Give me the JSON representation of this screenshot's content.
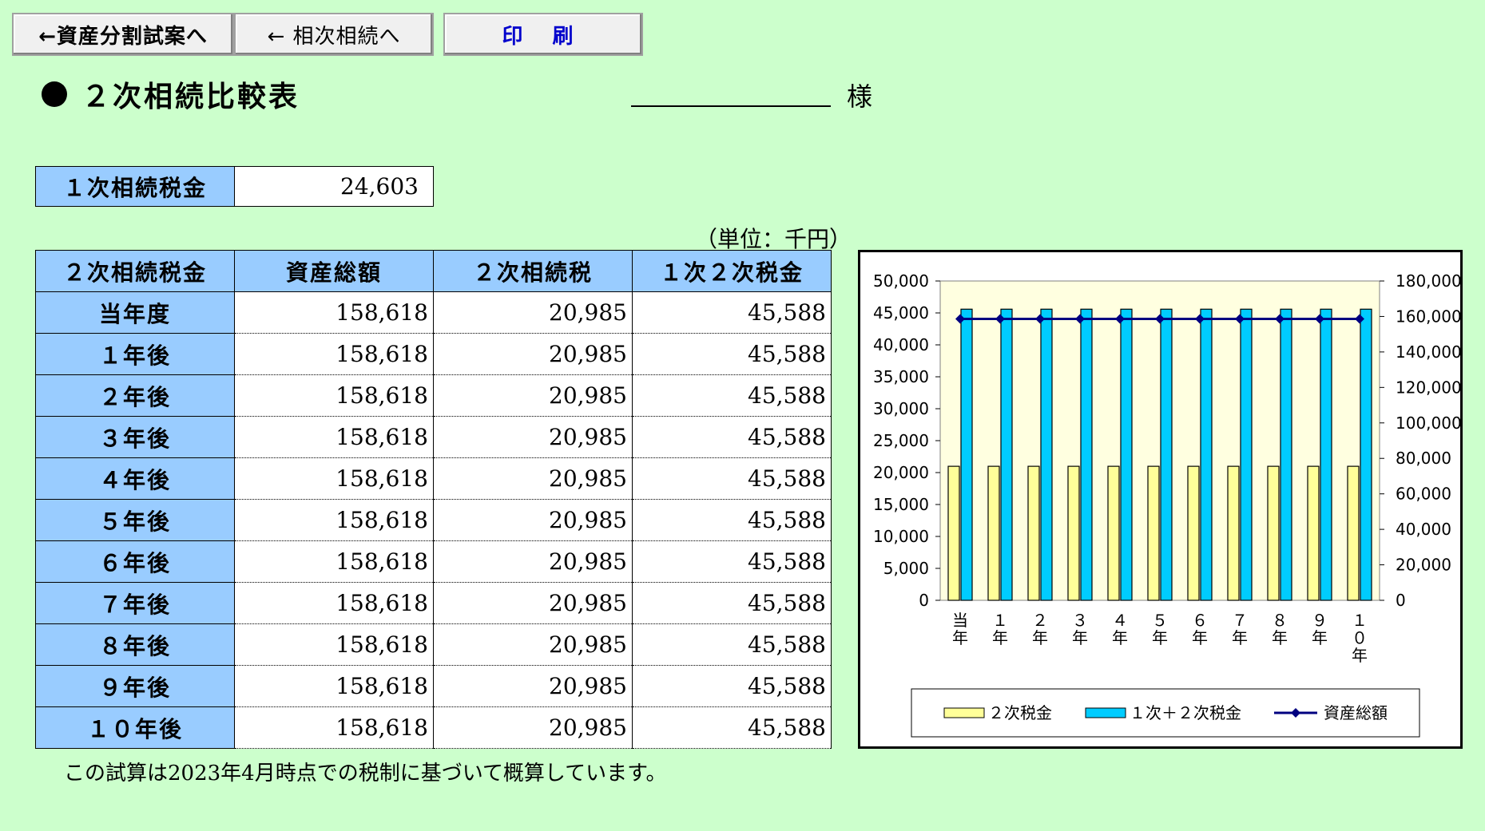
{
  "buttons": {
    "to_asset_division": "←資産分割試案へ",
    "to_successive": "← 相次相続へ",
    "print": "印 刷"
  },
  "title": "２次相続比較表",
  "honorific": "様",
  "first_tax": {
    "label": "１次相続税金",
    "value": "24,603"
  },
  "unit_label": "（単位：千円）",
  "table": {
    "headers": [
      "２次相続税金",
      "資産総額",
      "２次相続税",
      "１次２次税金"
    ],
    "rows": [
      {
        "label": "当年度",
        "assets": "158,618",
        "tax2": "20,985",
        "total": "45,588"
      },
      {
        "label": "１年後",
        "assets": "158,618",
        "tax2": "20,985",
        "total": "45,588"
      },
      {
        "label": "２年後",
        "assets": "158,618",
        "tax2": "20,985",
        "total": "45,588"
      },
      {
        "label": "３年後",
        "assets": "158,618",
        "tax2": "20,985",
        "total": "45,588"
      },
      {
        "label": "４年後",
        "assets": "158,618",
        "tax2": "20,985",
        "total": "45,588"
      },
      {
        "label": "５年後",
        "assets": "158,618",
        "tax2": "20,985",
        "total": "45,588"
      },
      {
        "label": "６年後",
        "assets": "158,618",
        "tax2": "20,985",
        "total": "45,588"
      },
      {
        "label": "７年後",
        "assets": "158,618",
        "tax2": "20,985",
        "total": "45,588"
      },
      {
        "label": "８年後",
        "assets": "158,618",
        "tax2": "20,985",
        "total": "45,588"
      },
      {
        "label": "９年後",
        "assets": "158,618",
        "tax2": "20,985",
        "total": "45,588"
      },
      {
        "label": "１０年後",
        "assets": "158,618",
        "tax2": "20,985",
        "total": "45,588"
      }
    ]
  },
  "note": "この試算は2023年4月時点での税制に基づいて概算しています。",
  "colors": {
    "background": "#ccffcc",
    "header": "#99ccff",
    "bar_tax2": "#ffff99",
    "bar_total": "#00ccff",
    "line_assets": "#000080",
    "plot_bg": "#ffffe0"
  },
  "chart_data": {
    "type": "bar",
    "categories": [
      "当\n年",
      "１\n年",
      "２\n年",
      "３\n年",
      "４\n年",
      "５\n年",
      "６\n年",
      "７\n年",
      "８\n年",
      "９\n年",
      "１\n０\n年"
    ],
    "series": [
      {
        "name": "２次税金",
        "type": "bar",
        "axis": "left",
        "values": [
          20985,
          20985,
          20985,
          20985,
          20985,
          20985,
          20985,
          20985,
          20985,
          20985,
          20985
        ]
      },
      {
        "name": "１次＋２次税金",
        "type": "bar",
        "axis": "left",
        "values": [
          45588,
          45588,
          45588,
          45588,
          45588,
          45588,
          45588,
          45588,
          45588,
          45588,
          45588
        ]
      },
      {
        "name": "資産総額",
        "type": "line",
        "axis": "right",
        "values": [
          158618,
          158618,
          158618,
          158618,
          158618,
          158618,
          158618,
          158618,
          158618,
          158618,
          158618
        ]
      }
    ],
    "y_left": {
      "min": 0,
      "max": 50000,
      "ticks": [
        "0",
        "5,000",
        "10,000",
        "15,000",
        "20,000",
        "25,000",
        "30,000",
        "35,000",
        "40,000",
        "45,000",
        "50,000"
      ]
    },
    "y_right": {
      "min": 0,
      "max": 180000,
      "ticks": [
        "0",
        "20,000",
        "40,000",
        "60,000",
        "80,000",
        "100,000",
        "120,000",
        "140,000",
        "160,000",
        "180,000"
      ]
    },
    "legend_position": "bottom",
    "grid": false
  }
}
